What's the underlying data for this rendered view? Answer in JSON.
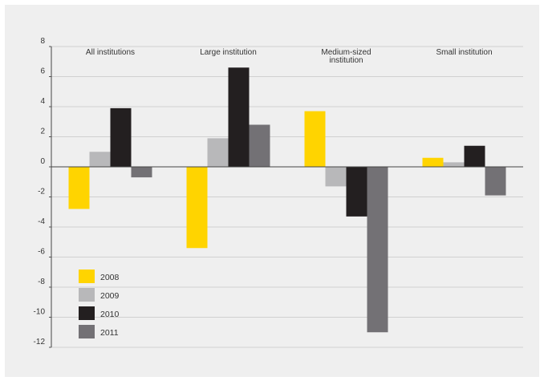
{
  "chart_data": {
    "type": "bar",
    "categories": [
      "All institutions",
      "Large institution",
      "Medium-sized institution",
      "Small institution"
    ],
    "series": [
      {
        "name": "2008",
        "values": [
          -2.8,
          -5.4,
          3.7,
          0.6
        ]
      },
      {
        "name": "2009",
        "values": [
          1.0,
          1.9,
          -1.3,
          0.3
        ]
      },
      {
        "name": "2010",
        "values": [
          3.9,
          6.6,
          -3.3,
          1.4
        ]
      },
      {
        "name": "2011",
        "values": [
          -0.7,
          2.8,
          -11.0,
          -1.9
        ]
      }
    ],
    "colors": [
      "#ffd400",
      "#b8b8ba",
      "#231f20",
      "#737175"
    ],
    "ylim": [
      -12,
      8
    ],
    "yticks": [
      "8",
      "6",
      "4",
      "2",
      "0",
      "-2",
      "-4",
      "-6",
      "-8",
      "-10",
      "-12"
    ],
    "grid": true,
    "legend": "bottom-left"
  }
}
